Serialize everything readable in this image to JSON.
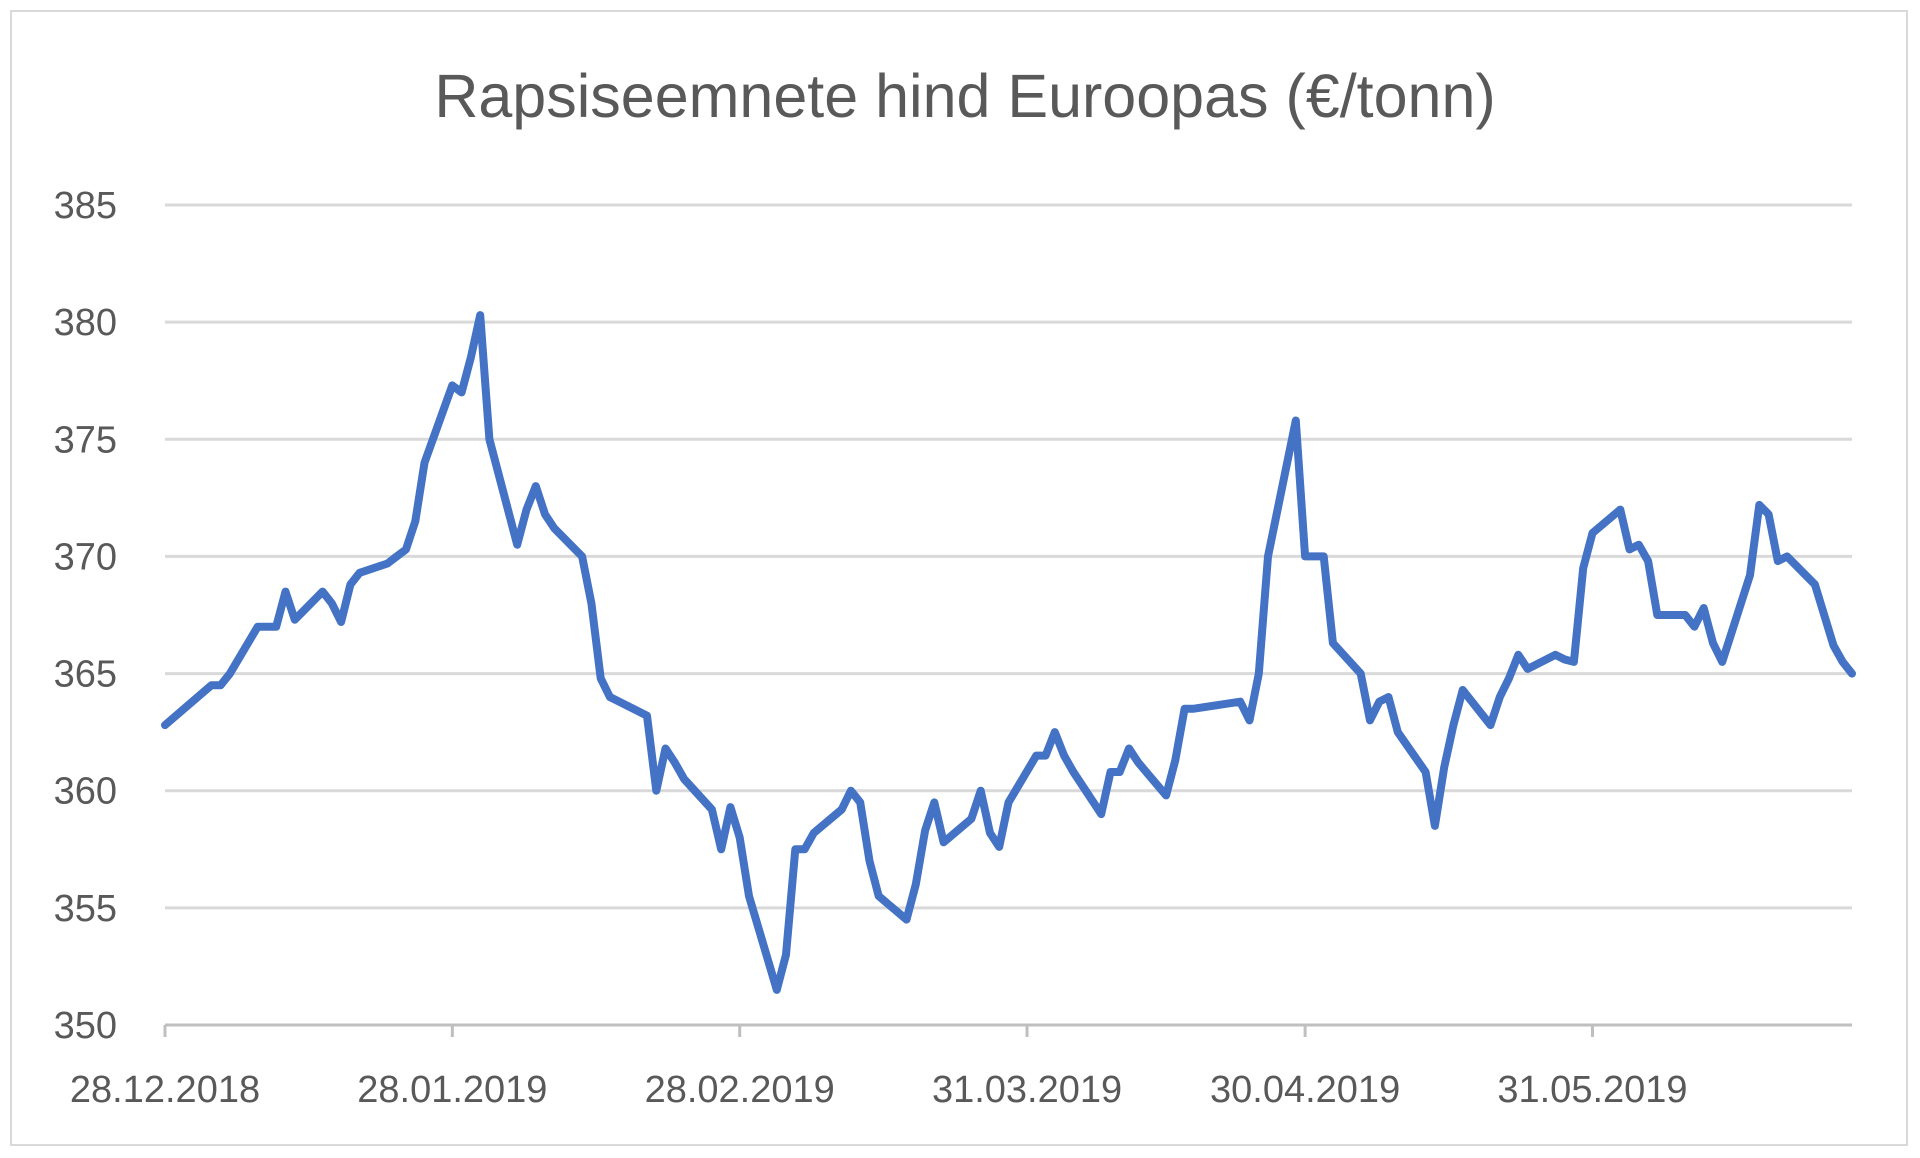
{
  "chart_data": {
    "type": "line",
    "title": "Rapsiseemnete hind Euroopas (€/tonn)",
    "xlabel": "",
    "ylabel": "",
    "ylim": [
      350,
      385
    ],
    "y_ticks": [
      "350",
      "355",
      "360",
      "365",
      "370",
      "375",
      "380",
      "385"
    ],
    "x_ticks": [
      "28.12.2018",
      "28.01.2019",
      "28.02.2019",
      "31.03.2019",
      "30.04.2019",
      "31.05.2019"
    ],
    "x_range": [
      "2018-12-28",
      "2019-06-28"
    ],
    "grid": true,
    "legend": "none",
    "color": "#4472c4",
    "series": [
      {
        "x": [
          "2018-12-28",
          "2019-01-02",
          "2019-01-03",
          "2019-01-04",
          "2019-01-07",
          "2019-01-08",
          "2019-01-09",
          "2019-01-10",
          "2019-01-11",
          "2019-01-14",
          "2019-01-15",
          "2019-01-16",
          "2019-01-17",
          "2019-01-18",
          "2019-01-21",
          "2019-01-22",
          "2019-01-23",
          "2019-01-24",
          "2019-01-25",
          "2019-01-28",
          "2019-01-29",
          "2019-01-30",
          "2019-01-31",
          "2019-02-01",
          "2019-02-04",
          "2019-02-05",
          "2019-02-06",
          "2019-02-07",
          "2019-02-08",
          "2019-02-11",
          "2019-02-12",
          "2019-02-13",
          "2019-02-14",
          "2019-02-15",
          "2019-02-18",
          "2019-02-19",
          "2019-02-20",
          "2019-02-21",
          "2019-02-22",
          "2019-02-25",
          "2019-02-26",
          "2019-02-27",
          "2019-02-28",
          "2019-03-01",
          "2019-03-04",
          "2019-03-05",
          "2019-03-06",
          "2019-03-07",
          "2019-03-08",
          "2019-03-11",
          "2019-03-12",
          "2019-03-13",
          "2019-03-14",
          "2019-03-15",
          "2019-03-18",
          "2019-03-19",
          "2019-03-20",
          "2019-03-21",
          "2019-03-22",
          "2019-03-25",
          "2019-03-26",
          "2019-03-27",
          "2019-03-28",
          "2019-03-29",
          "2019-04-01",
          "2019-04-02",
          "2019-04-03",
          "2019-04-04",
          "2019-04-05",
          "2019-04-08",
          "2019-04-09",
          "2019-04-10",
          "2019-04-11",
          "2019-04-12",
          "2019-04-15",
          "2019-04-16",
          "2019-04-17",
          "2019-04-18",
          "2019-04-23",
          "2019-04-24",
          "2019-04-25",
          "2019-04-26",
          "2019-04-29",
          "2019-04-30",
          "2019-05-02",
          "2019-05-03",
          "2019-05-06",
          "2019-05-07",
          "2019-05-08",
          "2019-05-09",
          "2019-05-10",
          "2019-05-13",
          "2019-05-14",
          "2019-05-15",
          "2019-05-16",
          "2019-05-17",
          "2019-05-20",
          "2019-05-21",
          "2019-05-22",
          "2019-05-23",
          "2019-05-24",
          "2019-05-27",
          "2019-05-28",
          "2019-05-29",
          "2019-05-30",
          "2019-05-31",
          "2019-06-03",
          "2019-06-04",
          "2019-06-05",
          "2019-06-06",
          "2019-06-07",
          "2019-06-10",
          "2019-06-11",
          "2019-06-12",
          "2019-06-13",
          "2019-06-14",
          "2019-06-17",
          "2019-06-18",
          "2019-06-19",
          "2019-06-20",
          "2019-06-21",
          "2019-06-24",
          "2019-06-25",
          "2019-06-26",
          "2019-06-27",
          "2019-06-28"
        ],
        "values": [
          362.8,
          364.5,
          364.5,
          365.0,
          367.0,
          367.0,
          367.0,
          368.5,
          367.3,
          368.5,
          368.0,
          367.2,
          368.8,
          369.3,
          369.7,
          370.0,
          370.3,
          371.5,
          374.0,
          377.3,
          377.0,
          378.5,
          380.3,
          375.0,
          370.5,
          372.0,
          373.0,
          371.8,
          371.2,
          370.0,
          368.0,
          364.8,
          364.0,
          363.8,
          363.2,
          360.0,
          361.8,
          361.2,
          360.5,
          359.2,
          357.5,
          359.3,
          358.0,
          355.5,
          351.5,
          353.0,
          357.5,
          357.5,
          358.2,
          359.2,
          360.0,
          359.5,
          357.0,
          355.5,
          354.5,
          356.0,
          358.3,
          359.5,
          357.8,
          358.8,
          360.0,
          358.2,
          357.6,
          359.5,
          361.5,
          361.5,
          362.5,
          361.5,
          360.8,
          359.0,
          360.8,
          360.8,
          361.8,
          361.2,
          359.8,
          361.3,
          363.5,
          363.5,
          363.8,
          363.0,
          365.0,
          370.0,
          375.8,
          370.0,
          370.0,
          366.3,
          365.0,
          363.0,
          363.8,
          364.0,
          362.5,
          360.8,
          358.5,
          361.0,
          362.8,
          364.3,
          362.8,
          364.0,
          364.8,
          365.8,
          365.2,
          365.8,
          365.6,
          365.5,
          369.5,
          371.0,
          372.0,
          370.3,
          370.5,
          369.8,
          367.5,
          367.5,
          367.0,
          367.8,
          366.3,
          365.5,
          369.2,
          372.2,
          371.8,
          369.8,
          370.0,
          368.8,
          367.5,
          366.2,
          365.5,
          365.0
        ]
      }
    ]
  }
}
